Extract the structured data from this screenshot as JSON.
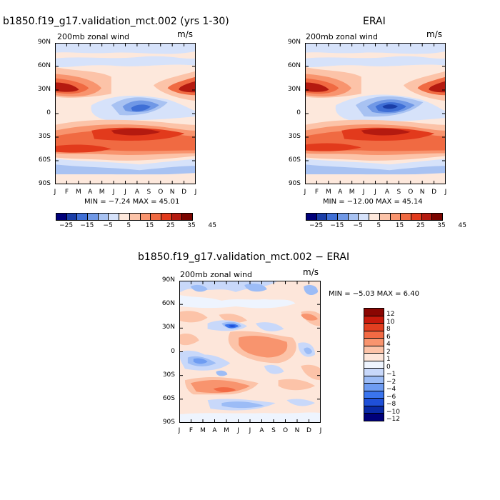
{
  "colors": {
    "wind": [
      "#00007a",
      "#1a3ea8",
      "#3f6fd6",
      "#7098e6",
      "#a8c2f2",
      "#d6e2fa",
      "#fde8dc",
      "#fcc3a8",
      "#f8946e",
      "#f06a42",
      "#e23a1c",
      "#b41a10",
      "#7a0400"
    ],
    "diff": [
      "#00007a",
      "#0a2aa6",
      "#1f50d8",
      "#3a74ee",
      "#6e9cf2",
      "#9cbcf6",
      "#c8d8fa",
      "#eef4fe",
      "#fde6da",
      "#fcc3a8",
      "#f8946e",
      "#f26a44",
      "#e23f20",
      "#c81a0c",
      "#8a0602"
    ]
  },
  "month_ticks": [
    "J",
    "F",
    "M",
    "A",
    "M",
    "J",
    "J",
    "A",
    "S",
    "O",
    "N",
    "D",
    "J"
  ],
  "lat_ticks": [
    "90N",
    "60N",
    "30N",
    "0",
    "30S",
    "60S",
    "90S"
  ],
  "panels": {
    "p1": {
      "title": "b1850.f19_g17.validation_mct.002 (yrs 1-30)",
      "subtitle": "200mb zonal wind",
      "units": "m/s",
      "minmax": "MIN =  −7.24  MAX =  45.01",
      "colorbar_labels": [
        "−25",
        "−15",
        "−5",
        "5",
        "15",
        "25",
        "35",
        "45"
      ]
    },
    "p2": {
      "title": "ERAI",
      "subtitle": "200mb zonal wind",
      "units": "m/s",
      "minmax": "MIN = −12.00  MAX =  45.14",
      "colorbar_labels": [
        "−25",
        "−15",
        "−5",
        "5",
        "15",
        "25",
        "35",
        "45"
      ]
    },
    "p3": {
      "title": "b1850.f19_g17.validation_mct.002 − ERAI",
      "subtitle": "200mb zonal wind",
      "units": "m/s",
      "minmax": "MIN =   −5.03  MAX =   6.40",
      "colorbar_labels": [
        "12",
        "10",
        "8",
        "6",
        "4",
        "2",
        "1",
        "0",
        "−1",
        "−2",
        "−4",
        "−6",
        "−8",
        "−10",
        "−12"
      ]
    }
  },
  "chart_data": [
    {
      "type": "heatmap",
      "title": "b1850.f19_g17.validation_mct.002 (yrs 1-30)",
      "subtitle": "200mb zonal wind",
      "units": "m/s",
      "x_categories": [
        "J",
        "F",
        "M",
        "A",
        "M",
        "J",
        "J",
        "A",
        "S",
        "O",
        "N",
        "D",
        "J"
      ],
      "y_ticks": [
        "90N",
        "60N",
        "30N",
        "0",
        "30S",
        "60S",
        "90S"
      ],
      "min": -7.24,
      "max": 45.01,
      "contour_levels": [
        -25,
        -20,
        -15,
        -10,
        -5,
        0,
        5,
        10,
        15,
        20,
        25,
        30,
        35,
        40,
        45
      ],
      "features": [
        {
          "lat": 30,
          "month": "Jan",
          "value": 40
        },
        {
          "lat": 30,
          "month": "Dec",
          "value": 38
        },
        {
          "lat": 10,
          "month": "Jul",
          "value": -5
        },
        {
          "lat": -30,
          "month": "Jul",
          "value": 45
        },
        {
          "lat": -50,
          "month": "Feb",
          "value": 28
        }
      ]
    },
    {
      "type": "heatmap",
      "title": "ERAI",
      "subtitle": "200mb zonal wind",
      "units": "m/s",
      "x_categories": [
        "J",
        "F",
        "M",
        "A",
        "M",
        "J",
        "J",
        "A",
        "S",
        "O",
        "N",
        "D",
        "J"
      ],
      "y_ticks": [
        "90N",
        "60N",
        "30N",
        "0",
        "30S",
        "60S",
        "90S"
      ],
      "min": -12.0,
      "max": 45.14,
      "contour_levels": [
        -25,
        -20,
        -15,
        -10,
        -5,
        0,
        5,
        10,
        15,
        20,
        25,
        30,
        35,
        40,
        45
      ],
      "features": [
        {
          "lat": 30,
          "month": "Jan",
          "value": 40
        },
        {
          "lat": 30,
          "month": "Dec",
          "value": 38
        },
        {
          "lat": 10,
          "month": "Jul",
          "value": -12
        },
        {
          "lat": -30,
          "month": "Jul",
          "value": 45
        },
        {
          "lat": -50,
          "month": "Feb",
          "value": 28
        }
      ]
    },
    {
      "type": "heatmap",
      "title": "b1850.f19_g17.validation_mct.002 − ERAI",
      "subtitle": "200mb zonal wind",
      "units": "m/s",
      "x_categories": [
        "J",
        "F",
        "M",
        "A",
        "M",
        "J",
        "J",
        "A",
        "S",
        "O",
        "N",
        "D",
        "J"
      ],
      "y_ticks": [
        "90N",
        "60N",
        "30N",
        "0",
        "30S",
        "60S",
        "90S"
      ],
      "min": -5.03,
      "max": 6.4,
      "contour_levels": [
        -12,
        -10,
        -8,
        -6,
        -4,
        -2,
        -1,
        0,
        1,
        2,
        4,
        6,
        8,
        10,
        12
      ],
      "features": [
        {
          "lat": 30,
          "month": "May",
          "value": -5
        },
        {
          "lat": 5,
          "month": "Jul",
          "value": 4
        },
        {
          "lat": -55,
          "month": "May",
          "value": 6
        },
        {
          "lat": -75,
          "month": "Jun",
          "value": -2
        }
      ]
    }
  ]
}
